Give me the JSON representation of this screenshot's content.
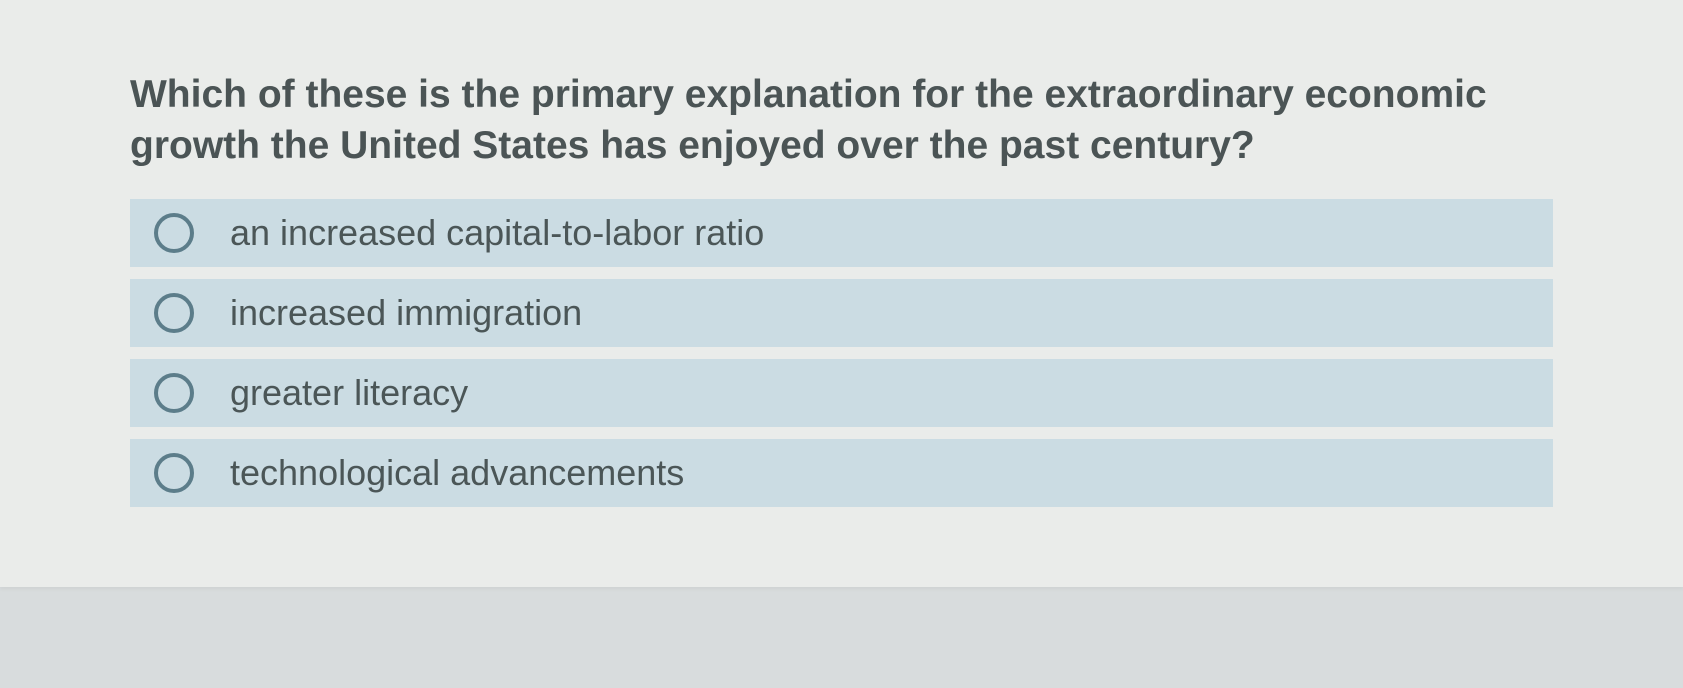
{
  "question": {
    "text": "Which of these is the primary explanation for the extraordinary economic growth the United States has enjoyed over the past century?"
  },
  "options": [
    {
      "label": "an increased capital-to-labor ratio"
    },
    {
      "label": "increased immigration"
    },
    {
      "label": "greater literacy"
    },
    {
      "label": "technological advancements"
    }
  ],
  "colors": {
    "page_background": "#d8dcdd",
    "container_background": "#eaecea",
    "option_background": "#cbdce3",
    "radio_border": "#5c7d8a",
    "text_color": "#4b5455"
  }
}
